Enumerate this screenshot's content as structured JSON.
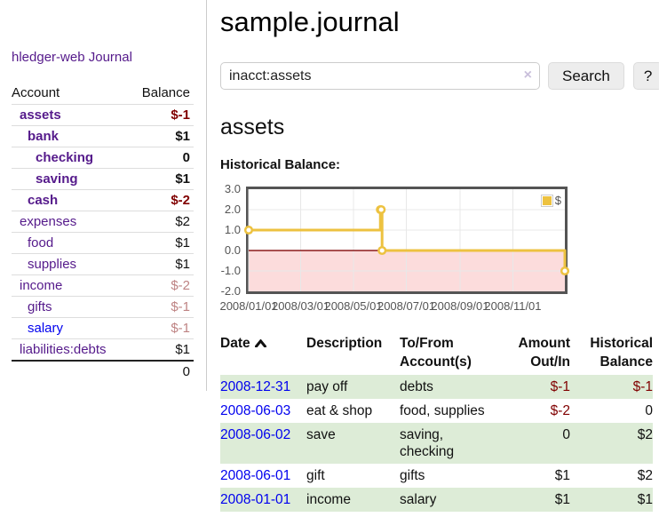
{
  "app": {
    "title": "hledger-web"
  },
  "sidebar": {
    "journal_link": "Journal",
    "accounts": {
      "header_account": "Account",
      "header_balance": "Balance",
      "rows": [
        {
          "name": "assets",
          "indent": 0,
          "bold": true,
          "link_color": "purple",
          "balance": "$-1",
          "balance_style": "neg-strong"
        },
        {
          "name": "bank",
          "indent": 1,
          "bold": true,
          "link_color": "purple",
          "balance": "$1",
          "balance_style": "pos"
        },
        {
          "name": "checking",
          "indent": 2,
          "bold": true,
          "link_color": "purple",
          "balance": "0",
          "balance_style": "pos"
        },
        {
          "name": "saving",
          "indent": 2,
          "bold": true,
          "link_color": "purple",
          "balance": "$1",
          "balance_style": "pos"
        },
        {
          "name": "cash",
          "indent": 1,
          "bold": true,
          "link_color": "purple",
          "balance": "$-2",
          "balance_style": "neg-strong"
        },
        {
          "name": "expenses",
          "indent": 0,
          "bold": false,
          "link_color": "purple",
          "balance": "$2",
          "balance_style": "pos"
        },
        {
          "name": "food",
          "indent": 1,
          "bold": false,
          "link_color": "purple",
          "balance": "$1",
          "balance_style": "pos"
        },
        {
          "name": "supplies",
          "indent": 1,
          "bold": false,
          "link_color": "purple",
          "balance": "$1",
          "balance_style": "pos"
        },
        {
          "name": "income",
          "indent": 0,
          "bold": false,
          "link_color": "purple",
          "balance": "$-2",
          "balance_style": "neg-soft"
        },
        {
          "name": "gifts",
          "indent": 1,
          "bold": false,
          "link_color": "purple",
          "balance": "$-1",
          "balance_style": "neg-soft"
        },
        {
          "name": "salary",
          "indent": 1,
          "bold": false,
          "link_color": "blue",
          "balance": "$-1",
          "balance_style": "neg-soft"
        },
        {
          "name": "liabilities:debts",
          "indent": 0,
          "bold": false,
          "link_color": "purple",
          "balance": "$1",
          "balance_style": "pos"
        }
      ],
      "total": "0"
    }
  },
  "main": {
    "title": "sample.journal",
    "search": {
      "value": "inacct:assets",
      "clear_icon": "×",
      "search_button": "Search",
      "help_button": "?"
    },
    "account_heading": "assets",
    "chart_label": "Historical Balance:"
  },
  "chart_data": {
    "type": "line",
    "title": "Historical Balance",
    "step": true,
    "legend": "$",
    "legend_position": "top-right",
    "grid": true,
    "series": [
      {
        "name": "$",
        "color": "#edc240",
        "points": [
          [
            "2008-01-01",
            1
          ],
          [
            "2008-06-01",
            2
          ],
          [
            "2008-06-02",
            2
          ],
          [
            "2008-06-03",
            0
          ],
          [
            "2008-12-31",
            -1
          ]
        ]
      }
    ],
    "x_range": [
      "2008-01-01",
      "2008-12-31"
    ],
    "x_ticks": [
      "2008/01/01",
      "2008/03/01",
      "2008/05/01",
      "2008/07/01",
      "2008/09/01",
      "2008/11/01"
    ],
    "y_ticks": [
      3.0,
      2.0,
      1.0,
      0.0,
      -1.0,
      -2.0
    ],
    "y_tick_labels": [
      "3.0",
      "2.0",
      "1.0",
      "0.0",
      "-1.0",
      "-2.0"
    ],
    "ylim": [
      -2,
      3
    ],
    "colors": {
      "line": "#edc240",
      "grid": "#e8e8e8",
      "border": "#545454",
      "zero_line": "#8b1a1a",
      "negative_region": "#fcdcdc"
    }
  },
  "register": {
    "headers": {
      "date": "Date",
      "description": "Description",
      "accounts": "To/From\nAccount(s)",
      "amount": "Amount\nOut/In",
      "balance": "Historical\nBalance"
    },
    "rows": [
      {
        "date": "2008-12-31",
        "description": "pay off",
        "accounts": "debts",
        "amount": "$-1",
        "amount_neg": true,
        "balance": "$-1",
        "balance_neg": true
      },
      {
        "date": "2008-06-03",
        "description": "eat & shop",
        "accounts": "food, supplies",
        "amount": "$-2",
        "amount_neg": true,
        "balance": "0",
        "balance_neg": false
      },
      {
        "date": "2008-06-02",
        "description": "save",
        "accounts": "saving, checking",
        "amount": "0",
        "amount_neg": false,
        "balance": "$2",
        "balance_neg": false
      },
      {
        "date": "2008-06-01",
        "description": "gift",
        "accounts": "gifts",
        "amount": "$1",
        "amount_neg": false,
        "balance": "$2",
        "balance_neg": false
      },
      {
        "date": "2008-01-01",
        "description": "income",
        "accounts": "salary",
        "amount": "$1",
        "amount_neg": false,
        "balance": "$1",
        "balance_neg": false
      }
    ]
  }
}
